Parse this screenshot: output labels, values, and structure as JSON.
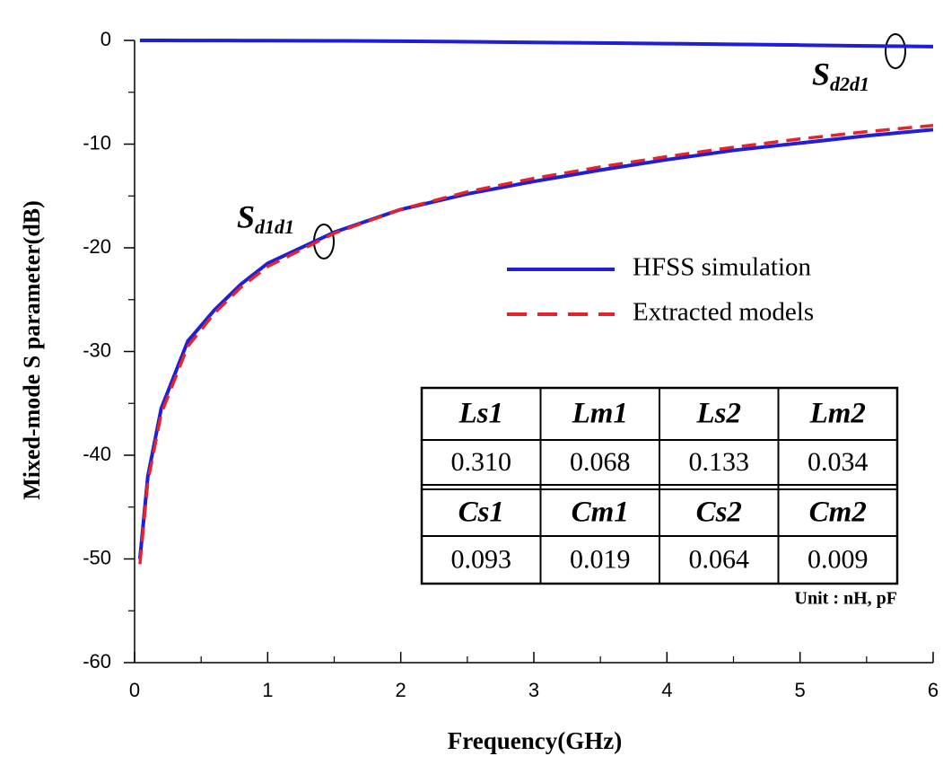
{
  "chart_data": {
    "type": "line",
    "xlabel": "Frequency(GHz)",
    "ylabel": "Mixed-mode S parameter(dB)",
    "x": [
      0.04,
      0.1,
      0.2,
      0.4,
      0.6,
      0.8,
      1.0,
      1.5,
      2,
      2.5,
      3,
      3.5,
      4,
      4.5,
      5,
      5.5,
      6
    ],
    "series": [
      {
        "name": "HFSS simulation",
        "color": "#1f1fd8",
        "dash": false,
        "values": [
          -50,
          -42,
          -35.5,
          -29,
          -26,
          -23.5,
          -21.5,
          -18.5,
          -16.3,
          -14.8,
          -13.6,
          -12.5,
          -11.5,
          -10.6,
          -9.9,
          -9.2,
          -8.6
        ]
      },
      {
        "name": "Extracted models",
        "color": "#e8222a",
        "dash": true,
        "values": [
          -50.5,
          -42.5,
          -36,
          -29.5,
          -26.3,
          -23.8,
          -21.8,
          -18.6,
          -16.3,
          -14.6,
          -13.3,
          -12.2,
          -11.2,
          -10.3,
          -9.5,
          -8.8,
          -8.2
        ]
      },
      {
        "color": "#e8222a",
        "dash": true,
        "values": [
          0,
          0,
          0,
          -0.01,
          -0.01,
          -0.02,
          -0.02,
          -0.04,
          -0.08,
          -0.13,
          -0.19,
          -0.25,
          -0.31,
          -0.38,
          -0.45,
          -0.53,
          -0.6
        ]
      },
      {
        "color": "#1f1fd8",
        "dash": false,
        "values": [
          0,
          0,
          0,
          -0.01,
          -0.01,
          -0.02,
          -0.02,
          -0.04,
          -0.08,
          -0.13,
          -0.19,
          -0.25,
          -0.31,
          -0.38,
          -0.45,
          -0.53,
          -0.6
        ]
      }
    ],
    "xlim": [
      0,
      6
    ],
    "ylim": [
      -60,
      0
    ],
    "xticks": [
      0,
      1,
      2,
      3,
      4,
      5,
      6
    ],
    "yticks": [
      -60,
      -50,
      -40,
      -30,
      -20,
      -10,
      0
    ],
    "xminorticks": [
      0.5,
      1.5,
      2.5,
      3.5,
      4.5,
      5.5
    ],
    "yminorticks": [
      -55,
      -45,
      -35,
      -25,
      -15,
      -5
    ],
    "annotations": [
      {
        "text": "S",
        "sub": "d2d1"
      },
      {
        "text": "S",
        "sub": "d1d1"
      }
    ]
  },
  "table": {
    "rows": [
      [
        "Ls1",
        "Lm1",
        "Ls2",
        "Lm2"
      ],
      [
        "0.310",
        "0.068",
        "0.133",
        "0.034"
      ],
      [
        "Cs1",
        "Cm1",
        "Cs2",
        "Cm2"
      ],
      [
        "0.093",
        "0.019",
        "0.064",
        "0.009"
      ]
    ],
    "note": "Unit : nH, pF"
  }
}
